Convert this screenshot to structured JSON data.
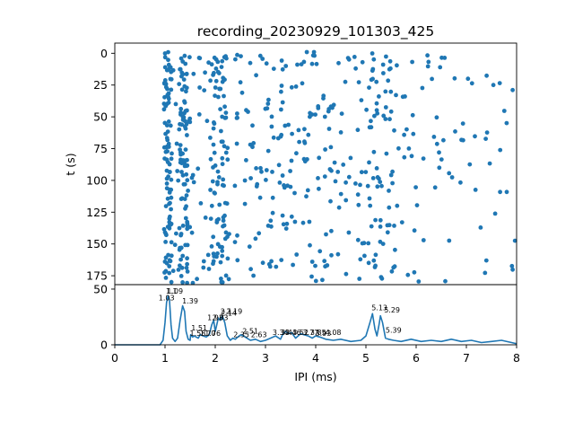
{
  "chart_data": [
    {
      "type": "scatter",
      "title": "recording_20230929_101303_425",
      "xlabel": "",
      "ylabel": "t (s)",
      "xlim": [
        0,
        8
      ],
      "ylim": [
        182,
        -8
      ],
      "y_inverted": true,
      "yticks": [
        0,
        25,
        50,
        75,
        100,
        125,
        150,
        175
      ],
      "color": "#1f77b4",
      "grid": false,
      "x_shared_with_lower_panel": true,
      "point_density_profile": {
        "x_breaks": [
          0.98,
          1.13,
          1.28,
          1.45,
          1.62,
          1.9,
          2.02,
          2.12,
          2.25,
          2.5,
          3.0,
          3.5,
          4.0,
          4.5,
          5.05,
          5.35,
          5.6,
          6.0,
          6.5,
          7.0,
          7.5,
          8.0
        ],
        "dots_per_band": [
          95,
          10,
          90,
          12,
          16,
          30,
          24,
          42,
          12,
          30,
          46,
          40,
          36,
          34,
          42,
          28,
          18,
          16,
          14,
          12,
          12
        ],
        "y_range": [
          -1,
          181
        ],
        "approximate": true
      }
    },
    {
      "type": "line",
      "title": "",
      "xlabel": "IPI (ms)",
      "ylabel": "",
      "xlim": [
        0,
        8
      ],
      "ylim": [
        0,
        54
      ],
      "xticks": [
        0,
        1,
        2,
        3,
        4,
        5,
        6,
        7,
        8
      ],
      "yticks": [
        0,
        50
      ],
      "color": "#1f77b4",
      "series": [
        {
          "x": [
            0,
            0.9,
            0.96,
            1.0,
            1.03,
            1.06,
            1.09,
            1.12,
            1.15,
            1.2,
            1.25,
            1.3,
            1.35,
            1.39,
            1.42,
            1.46,
            1.5,
            1.51,
            1.55,
            1.58,
            1.62,
            1.66,
            1.7,
            1.76,
            1.82,
            1.88,
            1.93,
            1.97,
            2.0,
            2.03,
            2.06,
            2.1,
            2.14,
            2.19,
            2.24,
            2.3,
            2.35,
            2.4,
            2.45,
            2.51,
            2.56,
            2.63,
            2.7,
            2.8,
            2.9,
            3.0,
            3.1,
            3.2,
            3.3,
            3.34,
            3.4,
            3.46,
            3.52,
            3.6,
            3.7,
            3.77,
            3.85,
            3.93,
            4.0,
            4.08,
            4.2,
            4.35,
            4.5,
            4.7,
            4.9,
            5.0,
            5.08,
            5.13,
            5.18,
            5.22,
            5.26,
            5.29,
            5.33,
            5.39,
            5.45,
            5.55,
            5.7,
            5.9,
            6.1,
            6.3,
            6.5,
            6.7,
            6.9,
            7.1,
            7.3,
            7.5,
            7.7,
            7.9,
            8.0
          ],
          "values": [
            0,
            0,
            4,
            20,
            38,
            44,
            40,
            18,
            6,
            3,
            6,
            22,
            35,
            30,
            12,
            5,
            4,
            9,
            7,
            8,
            7,
            6,
            9,
            8,
            7,
            9,
            18,
            22,
            12,
            18,
            24,
            22,
            26,
            20,
            8,
            4,
            6,
            5,
            7,
            9,
            8,
            6,
            4,
            5,
            3,
            4,
            6,
            8,
            5,
            9,
            12,
            10,
            11,
            6,
            10,
            9,
            8,
            6,
            8,
            7,
            5,
            4,
            5,
            3,
            4,
            8,
            20,
            28,
            14,
            8,
            18,
            26,
            20,
            6,
            5,
            4,
            3,
            5,
            3,
            4,
            3,
            5,
            3,
            4,
            2,
            3,
            4,
            2,
            1
          ]
        }
      ],
      "annotations": [
        {
          "text": "1.03",
          "x": 1.03,
          "y": 40
        },
        {
          "text": "1.1",
          "x": 1.13,
          "y": 46
        },
        {
          "text": "1.09",
          "x": 1.2,
          "y": 46
        },
        {
          "text": "1.39",
          "x": 1.5,
          "y": 37
        },
        {
          "text": "1.51",
          "x": 1.68,
          "y": 13
        },
        {
          "text": "1.58",
          "x": 1.65,
          "y": 8
        },
        {
          "text": "1.70",
          "x": 1.85,
          "y": 8
        },
        {
          "text": "1.76",
          "x": 1.95,
          "y": 8
        },
        {
          "text": "1.93",
          "x": 2.0,
          "y": 22
        },
        {
          "text": "2.03",
          "x": 2.1,
          "y": 22
        },
        {
          "text": "2.1",
          "x": 2.22,
          "y": 28
        },
        {
          "text": "2.19",
          "x": 2.38,
          "y": 28
        },
        {
          "text": "2.14",
          "x": 2.27,
          "y": 26
        },
        {
          "text": "2.51",
          "x": 2.7,
          "y": 10
        },
        {
          "text": "2.35",
          "x": 2.52,
          "y": 7
        },
        {
          "text": "2.63",
          "x": 2.87,
          "y": 7
        },
        {
          "text": "3.34",
          "x": 3.3,
          "y": 9
        },
        {
          "text": "3.4",
          "x": 3.42,
          "y": 9
        },
        {
          "text": "3.46",
          "x": 3.55,
          "y": 9
        },
        {
          "text": "3.52",
          "x": 3.7,
          "y": 9
        },
        {
          "text": "3.77",
          "x": 3.9,
          "y": 9
        },
        {
          "text": "3.85",
          "x": 4.05,
          "y": 9
        },
        {
          "text": "3.93",
          "x": 4.15,
          "y": 8
        },
        {
          "text": "4.08",
          "x": 4.35,
          "y": 9
        },
        {
          "text": "5.13",
          "x": 5.27,
          "y": 31
        },
        {
          "text": "5.29",
          "x": 5.52,
          "y": 29
        },
        {
          "text": "5.39",
          "x": 5.55,
          "y": 11
        }
      ]
    }
  ]
}
